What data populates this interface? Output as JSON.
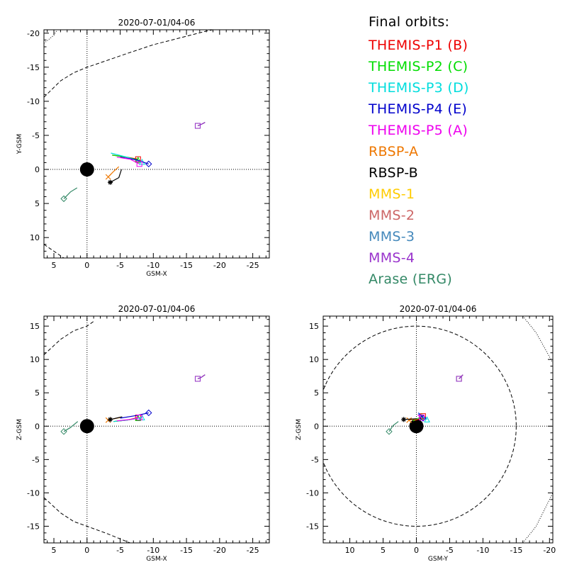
{
  "panels": [
    {
      "id": "xy",
      "title": "2020-07-01/04-06",
      "xlabel": "GSM-X",
      "ylabel": "Y-GSM",
      "xticks": [
        5,
        0,
        -5,
        -10,
        -15,
        -20,
        -25
      ],
      "yticks": [
        -20,
        -15,
        -10,
        -5,
        0,
        5,
        10
      ]
    },
    {
      "id": "xz",
      "title": "2020-07-01/04-06",
      "xlabel": "GSM-X",
      "ylabel": "Z-GSM",
      "xticks": [
        5,
        0,
        -5,
        -10,
        -15,
        -20,
        -25
      ],
      "yticks": [
        15,
        10,
        5,
        0,
        -5,
        -10,
        -15
      ]
    },
    {
      "id": "yz",
      "title": "2020-07-01/04-06",
      "xlabel": "GSM-Y",
      "ylabel": "Z-GSM",
      "xticks": [
        10,
        5,
        0,
        -5,
        -10,
        -15,
        -20
      ],
      "yticks": [
        15,
        10,
        5,
        0,
        -5,
        -10,
        -15
      ]
    }
  ],
  "legend": {
    "title": "Final orbits:",
    "items": [
      {
        "label": "THEMIS-P1 (B)",
        "color": "#ee0000"
      },
      {
        "label": "THEMIS-P2 (C)",
        "color": "#00dd00"
      },
      {
        "label": "THEMIS-P3 (D)",
        "color": "#00dddd"
      },
      {
        "label": "THEMIS-P4 (E)",
        "color": "#0000cc"
      },
      {
        "label": "THEMIS-P5 (A)",
        "color": "#ee00ee"
      },
      {
        "label": "RBSP-A",
        "color": "#ee7700"
      },
      {
        "label": "RBSP-B",
        "color": "#000000"
      },
      {
        "label": "MMS-1",
        "color": "#ffcc00"
      },
      {
        "label": "MMS-2",
        "color": "#cc6666"
      },
      {
        "label": "MMS-3",
        "color": "#4488bb"
      },
      {
        "label": "MMS-4",
        "color": "#9933cc"
      },
      {
        "label": "Arase (ERG)",
        "color": "#338866"
      }
    ]
  },
  "chart_data": [
    {
      "panel": "xy",
      "type": "scatter",
      "title": "2020-07-01/04-06",
      "xlabel": "GSM-X",
      "ylabel": "Y-GSM",
      "xlim": [
        6.5,
        -27.5
      ],
      "ylim": [
        -20.5,
        13
      ],
      "x_reversed": true,
      "y_reversed": true,
      "earth": [
        0,
        0
      ],
      "boundaries": [
        {
          "style": "dashed",
          "points": [
            [
              6.5,
              -10.6
            ],
            [
              4,
              -13
            ],
            [
              2,
              -14.2
            ],
            [
              0,
              -15
            ],
            [
              -3,
              -16
            ],
            [
              -6,
              -17
            ],
            [
              -10,
              -18.3
            ],
            [
              -14,
              -19.3
            ],
            [
              -18,
              -20.3
            ],
            [
              -19,
              -20.5
            ]
          ]
        },
        {
          "style": "dashed",
          "points": [
            [
              6.5,
              11
            ],
            [
              5,
              12
            ],
            [
              3.5,
              13
            ]
          ]
        },
        {
          "style": "dotted",
          "points": [
            [
              6.5,
              -18.5
            ],
            [
              5,
              -19.7
            ],
            [
              4.5,
              -20.5
            ]
          ]
        }
      ],
      "tracks": [
        {
          "label": "THEMIS-P1 (B)",
          "points": [
            [
              -3.8,
              -2.1
            ],
            [
              -6,
              -1.8
            ],
            [
              -7.7,
              -1.5
            ]
          ],
          "end": [
            -7.7,
            -1.5
          ],
          "marker": "square"
        },
        {
          "label": "THEMIS-P2 (C)",
          "points": [
            [
              -3.8,
              -2.1
            ],
            [
              -6,
              -1.8
            ],
            [
              -7.7,
              -1.4
            ]
          ],
          "end": [
            -7.7,
            -1.4
          ],
          "marker": "triangle"
        },
        {
          "label": "THEMIS-P3 (D)",
          "points": [
            [
              -3.6,
              -2.4
            ],
            [
              -6,
              -1.8
            ],
            [
              -8.3,
              -1.1
            ]
          ],
          "end": [
            -8.3,
            -1.1
          ],
          "marker": "triangle"
        },
        {
          "label": "THEMIS-P4 (E)",
          "points": [
            [
              -5,
              -1.8
            ],
            [
              -7.5,
              -1.4
            ],
            [
              -9.3,
              -0.8
            ]
          ],
          "end": [
            -9.3,
            -0.8
          ],
          "marker": "diamond"
        },
        {
          "label": "THEMIS-P5 (A)",
          "points": [
            [
              -4.5,
              -1.8
            ],
            [
              -6.5,
              -1.5
            ],
            [
              -7.9,
              -0.8
            ]
          ],
          "end": [
            -7.9,
            -0.8
          ],
          "marker": "square"
        },
        {
          "label": "RBSP-A",
          "points": [
            [
              -4.8,
              -0.4
            ],
            [
              -4,
              0.3
            ],
            [
              -3.2,
              1.1
            ]
          ],
          "end": [
            -3.2,
            1.1
          ],
          "marker": "x"
        },
        {
          "label": "RBSP-B",
          "points": [
            [
              -5.2,
              0
            ],
            [
              -4.8,
              1.2
            ],
            [
              -3.5,
              1.9
            ]
          ],
          "end": [
            -3.5,
            1.9
          ],
          "marker": "star"
        },
        {
          "label": "MMS-1",
          "points": [
            [
              -17.8,
              -6.9
            ],
            [
              -17.2,
              -6.6
            ],
            [
              -16.7,
              -6.4
            ]
          ],
          "end": [
            -16.7,
            -6.4
          ],
          "marker": "square"
        },
        {
          "label": "MMS-2",
          "points": [
            [
              -17.8,
              -6.9
            ],
            [
              -17.2,
              -6.6
            ],
            [
              -16.7,
              -6.4
            ]
          ],
          "end": [
            -16.7,
            -6.4
          ],
          "marker": "square"
        },
        {
          "label": "MMS-3",
          "points": [
            [
              -17.8,
              -6.9
            ],
            [
              -17.2,
              -6.6
            ],
            [
              -16.7,
              -6.4
            ]
          ],
          "end": [
            -16.7,
            -6.4
          ],
          "marker": "square"
        },
        {
          "label": "MMS-4",
          "points": [
            [
              -17.8,
              -6.9
            ],
            [
              -17.2,
              -6.6
            ],
            [
              -16.7,
              -6.4
            ]
          ],
          "end": [
            -16.7,
            -6.4
          ],
          "marker": "square"
        },
        {
          "label": "Arase (ERG)",
          "points": [
            [
              1.5,
              2.7
            ],
            [
              2.5,
              3.3
            ],
            [
              3.5,
              4.3
            ]
          ],
          "end": [
            3.5,
            4.3
          ],
          "marker": "diamond"
        }
      ]
    },
    {
      "panel": "xz",
      "type": "scatter",
      "title": "2020-07-01/04-06",
      "xlabel": "GSM-X",
      "ylabel": "Z-GSM",
      "xlim": [
        6.5,
        -27.5
      ],
      "ylim": [
        -17.5,
        16.5
      ],
      "x_reversed": true,
      "earth": [
        0,
        0
      ],
      "boundaries": [
        {
          "style": "dashed",
          "points": [
            [
              6.5,
              10.7
            ],
            [
              4,
              13
            ],
            [
              2,
              14.3
            ],
            [
              0,
              15
            ],
            [
              -1,
              15.7
            ]
          ]
        },
        {
          "style": "dashed",
          "points": [
            [
              6.5,
              -10.7
            ],
            [
              4,
              -13
            ],
            [
              2,
              -14.3
            ],
            [
              0,
              -15
            ],
            [
              -3,
              -16.1
            ],
            [
              -6,
              -17.3
            ],
            [
              -6.5,
              -17.5
            ]
          ]
        }
      ],
      "tracks": [
        {
          "label": "THEMIS-P1 (B)",
          "points": [
            [
              -4,
              0.7
            ],
            [
              -6,
              0.9
            ],
            [
              -7.7,
              1.3
            ]
          ],
          "end": [
            -7.7,
            1.3
          ],
          "marker": "square"
        },
        {
          "label": "THEMIS-P2 (C)",
          "points": [
            [
              -4,
              0.7
            ],
            [
              -6,
              0.9
            ],
            [
              -7.7,
              1.2
            ]
          ],
          "end": [
            -7.7,
            1.2
          ],
          "marker": "triangle"
        },
        {
          "label": "THEMIS-P3 (D)",
          "points": [
            [
              -4,
              0.7
            ],
            [
              -6,
              0.9
            ],
            [
              -8.3,
              1.3
            ]
          ],
          "end": [
            -8.3,
            1.3
          ],
          "marker": "triangle"
        },
        {
          "label": "THEMIS-P4 (E)",
          "points": [
            [
              -5,
              1.2
            ],
            [
              -7.5,
              1.6
            ],
            [
              -9.3,
              2
            ]
          ],
          "end": [
            -9.3,
            2
          ],
          "marker": "diamond"
        },
        {
          "label": "THEMIS-P5 (A)",
          "points": [
            [
              -4.5,
              0.8
            ],
            [
              -6.5,
              1
            ],
            [
              -7.9,
              1.3
            ]
          ],
          "end": [
            -7.9,
            1.3
          ],
          "marker": "square"
        },
        {
          "label": "RBSP-A",
          "points": [
            [
              -5,
              1.3
            ],
            [
              -4,
              1.1
            ],
            [
              -3.2,
              0.9
            ]
          ],
          "end": [
            -3.2,
            0.9
          ],
          "marker": "x"
        },
        {
          "label": "RBSP-B",
          "points": [
            [
              -5.3,
              1.4
            ],
            [
              -4.4,
              1.2
            ],
            [
              -3.5,
              1
            ]
          ],
          "end": [
            -3.5,
            1
          ],
          "marker": "star"
        },
        {
          "label": "MMS-1",
          "points": [
            [
              -17.8,
              7.7
            ],
            [
              -17.2,
              7.3
            ],
            [
              -16.7,
              7.1
            ]
          ],
          "end": [
            -16.7,
            7.1
          ],
          "marker": "square"
        },
        {
          "label": "MMS-2",
          "points": [
            [
              -17.8,
              7.7
            ],
            [
              -17.2,
              7.3
            ],
            [
              -16.7,
              7.1
            ]
          ],
          "end": [
            -16.7,
            7.1
          ],
          "marker": "square"
        },
        {
          "label": "MMS-3",
          "points": [
            [
              -17.8,
              7.7
            ],
            [
              -17.2,
              7.3
            ],
            [
              -16.7,
              7.1
            ]
          ],
          "end": [
            -16.7,
            7.1
          ],
          "marker": "square"
        },
        {
          "label": "MMS-4",
          "points": [
            [
              -17.8,
              7.7
            ],
            [
              -17.2,
              7.3
            ],
            [
              -16.7,
              7.1
            ]
          ],
          "end": [
            -16.7,
            7.1
          ],
          "marker": "square"
        },
        {
          "label": "Arase (ERG)",
          "points": [
            [
              1.4,
              0.7
            ],
            [
              2.5,
              -0.2
            ],
            [
              3.5,
              -0.8
            ]
          ],
          "end": [
            3.5,
            -0.8
          ],
          "marker": "diamond"
        }
      ]
    },
    {
      "panel": "yz",
      "type": "scatter",
      "title": "2020-07-01/04-06",
      "xlabel": "GSM-Y",
      "ylabel": "Z-GSM",
      "xlim": [
        14,
        -20.5
      ],
      "ylim": [
        -17.5,
        16.5
      ],
      "x_reversed": true,
      "earth": [
        0,
        0
      ],
      "boundaries": [
        {
          "style": "dashed-circle",
          "center": [
            0,
            0
          ],
          "radius": 15
        },
        {
          "style": "dotted",
          "points": [
            [
              -16,
              16.5
            ],
            [
              -18,
              14
            ],
            [
              -20.5,
              9.5
            ]
          ]
        },
        {
          "style": "dotted",
          "points": [
            [
              -16,
              -17.5
            ],
            [
              -18,
              -15
            ],
            [
              -20.5,
              -10
            ]
          ]
        }
      ],
      "tracks": [
        {
          "label": "THEMIS-P1 (B)",
          "points": [
            [
              0.5,
              0.8
            ],
            [
              -0.5,
              1.1
            ],
            [
              -1,
              1.5
            ]
          ],
          "end": [
            -1,
            1.5
          ],
          "marker": "square"
        },
        {
          "label": "THEMIS-P2 (C)",
          "points": [
            [
              0.5,
              0.8
            ],
            [
              -0.3,
              1.2
            ],
            [
              -0.8,
              1.4
            ]
          ],
          "end": [
            -0.8,
            1.4
          ],
          "marker": "triangle"
        },
        {
          "label": "THEMIS-P3 (D)",
          "points": [
            [
              -0.3,
              1.8
            ],
            [
              -0.9,
              1.4
            ],
            [
              -1.6,
              1
            ]
          ],
          "end": [
            -1.6,
            1
          ],
          "marker": "triangle"
        },
        {
          "label": "THEMIS-P4 (E)",
          "points": [
            [
              -0.3,
              2
            ],
            [
              -0.7,
              1.6
            ],
            [
              -1,
              1.2
            ]
          ],
          "end": [
            -1,
            1.2
          ],
          "marker": "diamond"
        },
        {
          "label": "THEMIS-P5 (A)",
          "points": [
            [
              -0.2,
              1.7
            ],
            [
              -0.5,
              1.5
            ],
            [
              -0.8,
              1.3
            ]
          ],
          "end": [
            -0.8,
            1.3
          ],
          "marker": "square"
        },
        {
          "label": "RBSP-A",
          "points": [
            [
              0,
              1
            ],
            [
              0.6,
              1
            ],
            [
              1.1,
              0.9
            ]
          ],
          "end": [
            1.1,
            0.9
          ],
          "marker": "x"
        },
        {
          "label": "RBSP-B",
          "points": [
            [
              0,
              1.1
            ],
            [
              1,
              1.05
            ],
            [
              1.9,
              1
            ]
          ],
          "end": [
            1.9,
            1
          ],
          "marker": "star"
        },
        {
          "label": "MMS-1",
          "points": [
            [
              -7,
              7.7
            ],
            [
              -6.7,
              7.4
            ],
            [
              -6.4,
              7.1
            ]
          ],
          "end": [
            -6.4,
            7.1
          ],
          "marker": "square"
        },
        {
          "label": "MMS-2",
          "points": [
            [
              -7,
              7.7
            ],
            [
              -6.7,
              7.4
            ],
            [
              -6.4,
              7.1
            ]
          ],
          "end": [
            -6.4,
            7.1
          ],
          "marker": "square"
        },
        {
          "label": "MMS-3",
          "points": [
            [
              -7,
              7.7
            ],
            [
              -6.7,
              7.4
            ],
            [
              -6.4,
              7.1
            ]
          ],
          "end": [
            -6.4,
            7.1
          ],
          "marker": "square"
        },
        {
          "label": "MMS-4",
          "points": [
            [
              -7,
              7.7
            ],
            [
              -6.7,
              7.4
            ],
            [
              -6.4,
              7.1
            ]
          ],
          "end": [
            -6.4,
            7.1
          ],
          "marker": "square"
        },
        {
          "label": "Arase (ERG)",
          "points": [
            [
              2.7,
              0.7
            ],
            [
              3.5,
              0.1
            ],
            [
              4.1,
              -0.8
            ]
          ],
          "end": [
            4.1,
            -0.8
          ],
          "marker": "diamond"
        }
      ]
    }
  ]
}
